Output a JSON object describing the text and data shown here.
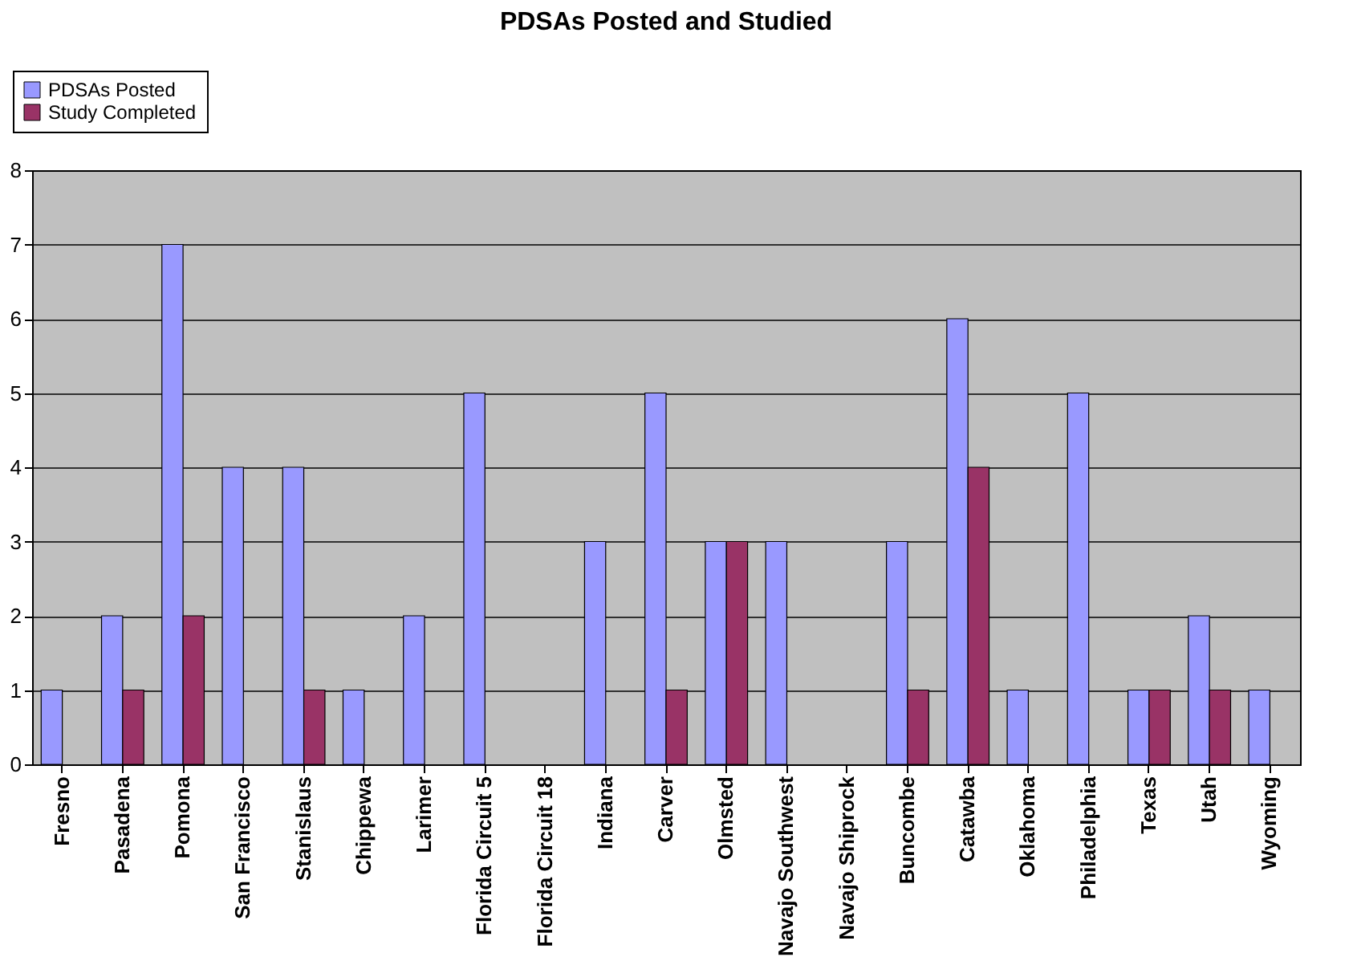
{
  "chart_data": {
    "type": "bar",
    "title": "PDSAs Posted and Studied",
    "categories": [
      "Fresno",
      "Pasadena",
      "Pomona",
      "San Francisco",
      "Stanislaus",
      "Chippewa",
      "Larimer",
      "Florida Circuit 5",
      "Florida Circuit 18",
      "Indiana",
      "Carver",
      "Olmsted",
      "Navajo Southwest",
      "Navajo Shiprock",
      "Buncombe",
      "Catawba",
      "Oklahoma",
      "Philadelphia",
      "Texas",
      "Utah",
      "Wyoming"
    ],
    "series": [
      {
        "name": "PDSAs Posted",
        "color": "#9999ff",
        "values": [
          1,
          2,
          7,
          4,
          4,
          1,
          2,
          5,
          0,
          3,
          5,
          3,
          3,
          0,
          3,
          6,
          1,
          5,
          1,
          2,
          1
        ]
      },
      {
        "name": "Study Completed",
        "color": "#993366",
        "values": [
          0,
          1,
          2,
          0,
          1,
          0,
          0,
          0,
          0,
          0,
          1,
          3,
          0,
          0,
          1,
          4,
          0,
          0,
          1,
          1,
          0
        ]
      }
    ],
    "ylim": [
      0,
      8
    ],
    "yticks": [
      0,
      1,
      2,
      3,
      4,
      5,
      6,
      7,
      8
    ],
    "grid": "y",
    "legend": "top left"
  }
}
